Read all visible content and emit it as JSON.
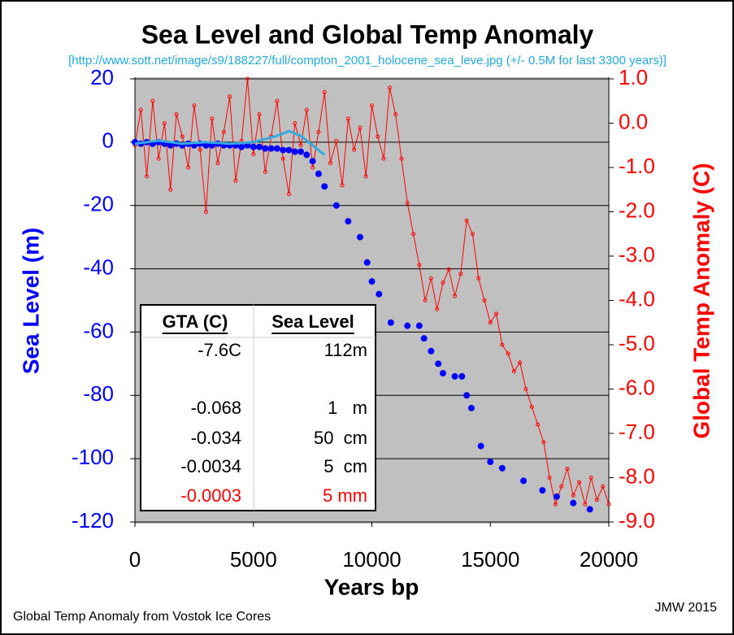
{
  "chart_data": {
    "type": "line",
    "title": "Sea Level and Global Temp Anomaly",
    "subtitle": "[http://www.sott.net/image/s9/188227/full/compton_2001_holocene_sea_leve.jpg (+/- 0.5M for last 3300 years)]",
    "x_label": "Years bp",
    "y_label": "Sea Level (m)",
    "y2_label": "Global Temp Anomaly (C)",
    "note_left": "Global Temp Anomaly from Vostok Ice Cores",
    "note_right": "JMW 2015",
    "xlim": [
      0,
      20000
    ],
    "xticks": [
      0,
      5000,
      10000,
      15000,
      20000
    ],
    "ylim": [
      -120,
      20
    ],
    "yticks": [
      20,
      0,
      -20,
      -40,
      -60,
      -80,
      -100,
      -120
    ],
    "y2lim": [
      -9,
      1
    ],
    "y2ticks": [
      {
        "value": 1,
        "label": "1.0"
      },
      {
        "value": 0,
        "label": "0.0"
      },
      {
        "value": -1,
        "label": "-1.0"
      },
      {
        "value": -2,
        "label": "-2.0"
      },
      {
        "value": -3,
        "label": "-3.0"
      },
      {
        "value": -4,
        "label": "-4.0"
      },
      {
        "value": -5,
        "label": "-5.0"
      },
      {
        "value": -6,
        "label": "-6.0"
      },
      {
        "value": -7,
        "label": "-7.0"
      },
      {
        "value": -8,
        "label": "-8.0"
      },
      {
        "value": -9,
        "label": "-9.0"
      }
    ],
    "grid": true,
    "background": "#c0c0c0",
    "series": [
      {
        "type": "line",
        "axis": "y2",
        "color": "#ff0000",
        "x": [
          0,
          250,
          500,
          750,
          1000,
          1250,
          1500,
          1750,
          2000,
          2250,
          2500,
          2750,
          3000,
          3250,
          3500,
          3750,
          4000,
          4250,
          4500,
          4750,
          5000,
          5250,
          5500,
          5750,
          6000,
          6250,
          6500,
          6750,
          7000,
          7250,
          7500,
          7750,
          8000,
          8250,
          8500,
          8750,
          9000,
          9250,
          9500,
          9750,
          10000,
          10250,
          10500,
          10750,
          11000,
          11250,
          11500,
          11750,
          12000,
          12250,
          12500,
          12750,
          13000,
          13250,
          13500,
          13750,
          14000,
          14250,
          14500,
          14750,
          15000,
          15250,
          15500,
          15750,
          16000,
          16250,
          16500,
          16750,
          17000,
          17250,
          17500,
          17750,
          18000,
          18250,
          18500,
          18750,
          19000,
          19250,
          19500,
          19750,
          20000
        ],
        "values": [
          -0.5,
          0.3,
          -1.2,
          0.5,
          -0.8,
          0.0,
          -1.5,
          0.2,
          -0.3,
          -1.0,
          0.4,
          -0.6,
          -2.0,
          0.1,
          -0.9,
          -0.2,
          0.6,
          -1.3,
          -0.4,
          1.0,
          -0.7,
          0.2,
          -1.1,
          -0.3,
          0.5,
          -0.8,
          -1.6,
          0.0,
          -0.5,
          0.3,
          -1.0,
          -0.2,
          0.7,
          -0.9,
          -0.4,
          -1.4,
          0.1,
          -0.6,
          -0.1,
          -1.2,
          0.4,
          -0.3,
          -0.8,
          0.8,
          0.2,
          -0.8,
          -1.8,
          -2.5,
          -3.2,
          -4.0,
          -3.5,
          -4.2,
          -3.6,
          -3.3,
          -3.9,
          -3.4,
          -2.2,
          -2.5,
          -3.5,
          -4.0,
          -4.5,
          -4.3,
          -5.0,
          -5.2,
          -5.6,
          -5.4,
          -6.0,
          -6.4,
          -6.8,
          -7.2,
          -8.0,
          -8.6,
          -8.2,
          -7.8,
          -8.4,
          -8.1,
          -8.6,
          -8.0,
          -8.5,
          -8.2,
          -8.6
        ]
      },
      {
        "type": "scatter",
        "color": "#0000ff",
        "x": [
          0,
          250,
          500,
          750,
          1000,
          1250,
          1500,
          1750,
          2000,
          2250,
          2500,
          2750,
          3000,
          3250,
          3500,
          3750,
          4000,
          4250,
          4500,
          4750,
          5000,
          5250,
          5500,
          5750,
          6000,
          6250,
          6500,
          6750,
          7000,
          7250,
          7500,
          7750,
          8000,
          8500,
          9000,
          9500,
          9800,
          10000,
          10300,
          10800,
          11500,
          12000,
          12200,
          12500,
          12800,
          13000,
          13500,
          13800,
          14000,
          14200,
          14600,
          15000,
          15500,
          16400,
          17200,
          17800,
          18500,
          19200
        ],
        "values": [
          0,
          -0.5,
          0,
          -0.5,
          0,
          -0.5,
          -1,
          -0.5,
          -1,
          -0.5,
          -1,
          -0.5,
          -1,
          -1,
          -0.5,
          -1,
          -1,
          -1,
          -1.5,
          -1,
          -1.5,
          -1.5,
          -2,
          -2,
          -2,
          -2.5,
          -2.5,
          -3,
          -3,
          -4,
          -6,
          -10,
          -14,
          -20,
          -25,
          -30,
          -38,
          -44,
          -48,
          -57,
          -58,
          -58,
          -62,
          -66,
          -70,
          -73,
          -74,
          -74,
          -80,
          -84,
          -96,
          -101,
          -103,
          -107,
          -110,
          -112,
          -114,
          -116
        ]
      },
      {
        "type": "line",
        "color": "#33aadd",
        "x": [
          0,
          1000,
          2000,
          3000,
          4000,
          5000,
          5500,
          6000,
          6500,
          7000,
          7500,
          8000
        ],
        "values": [
          -0.5,
          0.5,
          -0.5,
          0,
          -0.5,
          0,
          1,
          2,
          3.5,
          2,
          -1,
          -4
        ]
      }
    ]
  },
  "table": {
    "header": [
      "GTA (C)",
      "Sea Level"
    ],
    "rows": [
      [
        "-7.6C",
        "112m"
      ],
      [
        "-0.068",
        "1   m"
      ],
      [
        "-0.034",
        "50  cm"
      ],
      [
        "-0.0034",
        "5  cm"
      ],
      [
        "-0.0003",
        "5 mm"
      ]
    ]
  }
}
